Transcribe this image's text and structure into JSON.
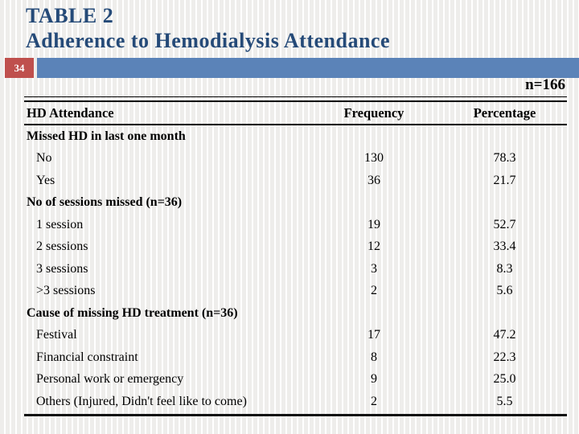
{
  "title": {
    "line1": "TABLE 2",
    "line2": "Adherence to Hemodialysis Attendance"
  },
  "page_number": "34",
  "sample_size_label": "n=166",
  "colors": {
    "title_blue": "#254a78",
    "badge_red": "#bf504d",
    "bar_blue": "#5b83b8",
    "stripe_gray": "#eeedeb",
    "text_black": "#000000"
  },
  "table": {
    "headers": [
      "HD Attendance",
      "Frequency",
      "Percentage"
    ],
    "rows": [
      {
        "type": "section",
        "label": "Missed HD in last one month",
        "frequency": "",
        "percentage": ""
      },
      {
        "type": "data",
        "label": "No",
        "frequency": "130",
        "percentage": "78.3"
      },
      {
        "type": "data",
        "label": "Yes",
        "frequency": "36",
        "percentage": "21.7"
      },
      {
        "type": "section",
        "label": "No of sessions missed (n=36)",
        "frequency": "",
        "percentage": ""
      },
      {
        "type": "data",
        "label": "1 session",
        "frequency": "19",
        "percentage": "52.7"
      },
      {
        "type": "data",
        "label": "2 sessions",
        "frequency": "12",
        "percentage": "33.4"
      },
      {
        "type": "data",
        "label": "3 sessions",
        "frequency": "3",
        "percentage": "8.3"
      },
      {
        "type": "data",
        "label": ">3 sessions",
        "frequency": "2",
        "percentage": "5.6"
      },
      {
        "type": "section",
        "label": "Cause of missing HD treatment (n=36)",
        "frequency": "",
        "percentage": ""
      },
      {
        "type": "data",
        "label": "Festival",
        "frequency": "17",
        "percentage": "47.2"
      },
      {
        "type": "data",
        "label": "Financial constraint",
        "frequency": "8",
        "percentage": "22.3"
      },
      {
        "type": "data",
        "label": "Personal work or emergency",
        "frequency": "9",
        "percentage": "25.0"
      },
      {
        "type": "data",
        "label": "Others (Injured, Didn't feel like to come)",
        "frequency": "2",
        "percentage": "5.5"
      }
    ]
  },
  "chart_data": {
    "type": "table",
    "title": "TABLE 2 Adherence to Hemodialysis Attendance",
    "n": 166,
    "columns": [
      "HD Attendance",
      "Frequency",
      "Percentage"
    ],
    "sections": [
      {
        "name": "Missed HD in last one month",
        "items": [
          {
            "label": "No",
            "frequency": 130,
            "percentage": 78.3
          },
          {
            "label": "Yes",
            "frequency": 36,
            "percentage": 21.7
          }
        ]
      },
      {
        "name": "No of sessions missed (n=36)",
        "items": [
          {
            "label": "1 session",
            "frequency": 19,
            "percentage": 52.7
          },
          {
            "label": "2 sessions",
            "frequency": 12,
            "percentage": 33.4
          },
          {
            "label": "3 sessions",
            "frequency": 3,
            "percentage": 8.3
          },
          {
            "label": ">3 sessions",
            "frequency": 2,
            "percentage": 5.6
          }
        ]
      },
      {
        "name": "Cause of missing HD treatment (n=36)",
        "items": [
          {
            "label": "Festival",
            "frequency": 17,
            "percentage": 47.2
          },
          {
            "label": "Financial constraint",
            "frequency": 8,
            "percentage": 22.3
          },
          {
            "label": "Personal work or emergency",
            "frequency": 9,
            "percentage": 25.0
          },
          {
            "label": "Others (Injured, Didn't feel like to come)",
            "frequency": 2,
            "percentage": 5.5
          }
        ]
      }
    ]
  }
}
